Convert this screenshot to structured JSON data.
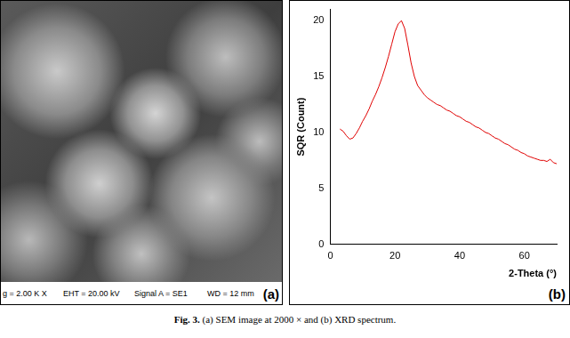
{
  "panel_a": {
    "label": "(a)",
    "info": [
      "g = 2.00 K X",
      "EHT = 20.00 kV",
      "Signal A = SE1",
      "WD = 12 mm"
    ]
  },
  "panel_b": {
    "label": "(b)"
  },
  "chart_data": {
    "type": "line",
    "x_label": "2-Theta (°)",
    "y_label": "SQR (Count)",
    "x": [
      3,
      4,
      5,
      6,
      7,
      8,
      9,
      10,
      11,
      12,
      13,
      14,
      15,
      16,
      17,
      18,
      19,
      20,
      21,
      22,
      23,
      24,
      25,
      26,
      27,
      28,
      29,
      30,
      31,
      32,
      33,
      34,
      35,
      36,
      37,
      38,
      39,
      40,
      41,
      42,
      43,
      44,
      45,
      46,
      47,
      48,
      49,
      50,
      51,
      52,
      53,
      54,
      55,
      56,
      57,
      58,
      59,
      60,
      61,
      62,
      63,
      64,
      65,
      66,
      67,
      68,
      69,
      70
    ],
    "values": [
      10.3,
      10.1,
      9.7,
      9.4,
      9.5,
      9.9,
      10.4,
      11.0,
      11.5,
      12.1,
      12.8,
      13.4,
      14.1,
      14.9,
      15.8,
      16.8,
      17.9,
      19.0,
      19.7,
      20.0,
      19.3,
      17.8,
      16.2,
      15.0,
      14.2,
      13.8,
      13.4,
      13.1,
      12.9,
      12.7,
      12.5,
      12.4,
      12.2,
      12.0,
      11.9,
      11.7,
      11.5,
      11.4,
      11.2,
      11.0,
      10.9,
      10.7,
      10.5,
      10.4,
      10.2,
      10.0,
      9.9,
      9.7,
      9.5,
      9.4,
      9.2,
      9.0,
      8.9,
      8.7,
      8.5,
      8.4,
      8.2,
      8.1,
      7.9,
      7.8,
      7.7,
      7.6,
      7.5,
      7.5,
      7.4,
      7.6,
      7.3,
      7.2
    ],
    "color": "#e00000",
    "xlim": [
      0,
      70
    ],
    "xticks": [
      0,
      20,
      40,
      60
    ],
    "ylim": [
      0,
      21
    ],
    "yticks": [
      0,
      5,
      10,
      15,
      20
    ],
    "grid": false
  },
  "caption": {
    "label": "Fig. 3.",
    "text": "(a) SEM image at 2000 × and (b) XRD spectrum."
  }
}
